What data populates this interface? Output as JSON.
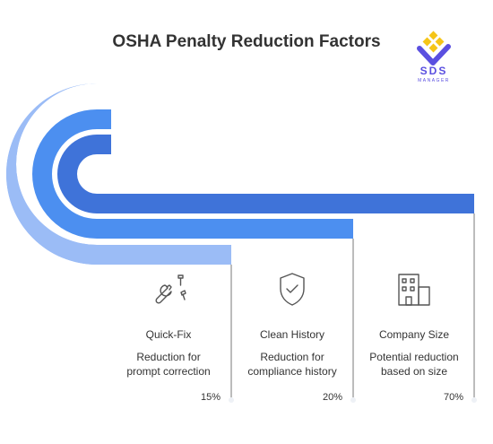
{
  "title": "OSHA Penalty Reduction Factors",
  "logo": {
    "text": "SDS",
    "subtext": "MANAGER",
    "colors": {
      "yellow": "#f5c518",
      "purple": "#5a4fe0"
    }
  },
  "colors": {
    "band_light": "#9bbcf6",
    "band_mid": "#4c8ff0",
    "band_dark": "#3f73d9",
    "connector": "#7a7a7a"
  },
  "factors": [
    {
      "label": "Quick-Fix",
      "description_line1": "Reduction for",
      "description_line2": "prompt correction",
      "percent": "15%",
      "icon": "wrench-bolts-icon"
    },
    {
      "label": "Clean History",
      "description_line1": "Reduction for",
      "description_line2": "compliance history",
      "percent": "20%",
      "icon": "shield-check-icon"
    },
    {
      "label": "Company Size",
      "description_line1": "Potential reduction",
      "description_line2": "based on size",
      "percent": "70%",
      "icon": "building-icon"
    }
  ]
}
